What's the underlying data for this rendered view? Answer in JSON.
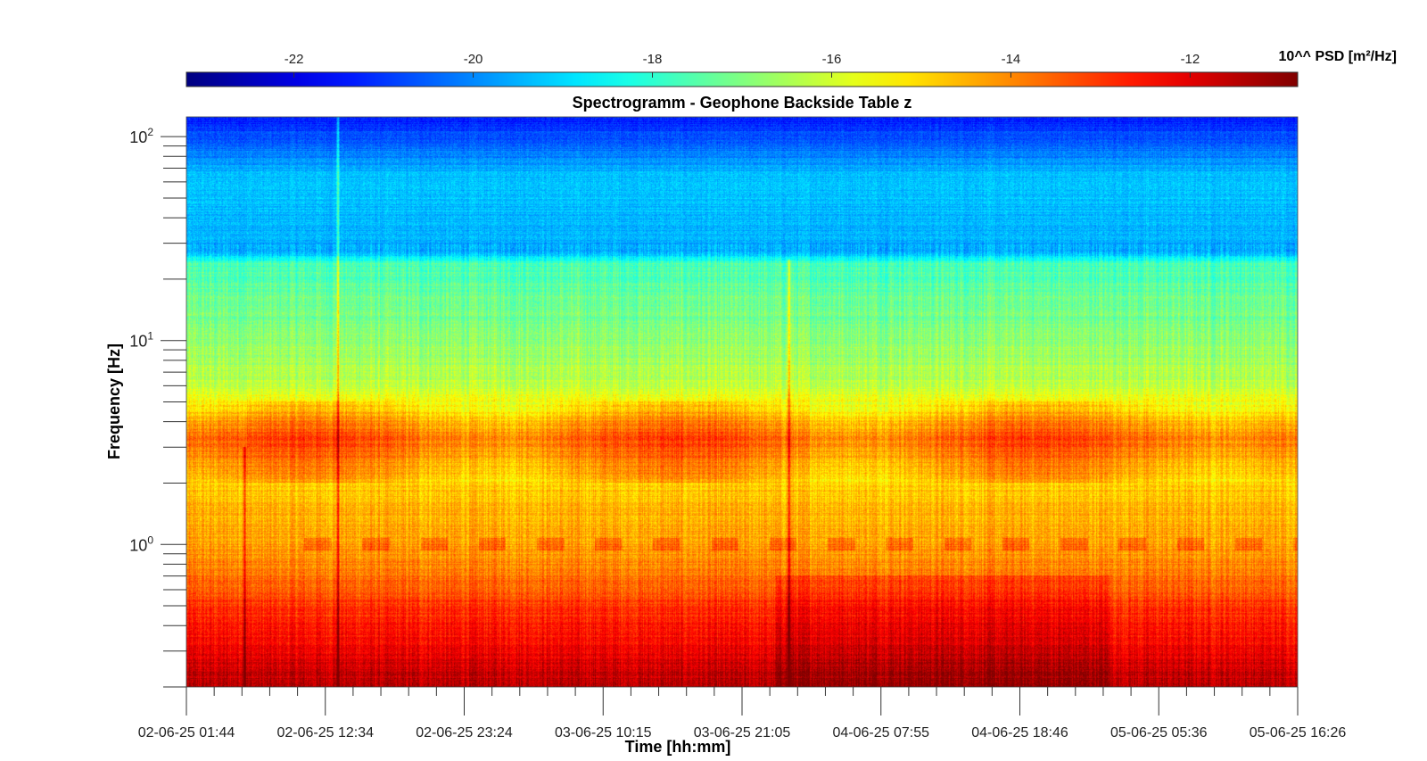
{
  "chart_data": {
    "type": "heatmap",
    "title": "Spectrogramm - Geophone Backside Table z",
    "xlabel": "Time [hh:mm]",
    "ylabel": "Frequency [Hz]",
    "x_ticks": [
      "02-06-25 01:44",
      "02-06-25 12:34",
      "02-06-25 23:24",
      "03-06-25 10:15",
      "03-06-25 21:05",
      "04-06-25 07:55",
      "04-06-25 18:46",
      "05-06-25 05:36",
      "05-06-25 16:26"
    ],
    "y_scale": "log",
    "ylim": [
      0.2,
      125
    ],
    "y_ticks": [
      {
        "value": 1,
        "base": "10",
        "exp": "0"
      },
      {
        "value": 10,
        "base": "10",
        "exp": "1"
      },
      {
        "value": 100,
        "base": "10",
        "exp": "2"
      }
    ],
    "colorbar": {
      "label": "10^^ PSD [m²/Hz]",
      "range": [
        -23.2,
        -10.8
      ],
      "ticks": [
        "-22",
        "-20",
        "-18",
        "-16",
        "-14",
        "-12"
      ],
      "colormap": "jet"
    },
    "psd_profile": [
      {
        "freq_hz": 0.2,
        "log_psd": -11.4
      },
      {
        "freq_hz": 0.3,
        "log_psd": -12.2
      },
      {
        "freq_hz": 0.5,
        "log_psd": -13.0
      },
      {
        "freq_hz": 0.8,
        "log_psd": -14.0
      },
      {
        "freq_hz": 1.0,
        "log_psd": -14.3
      },
      {
        "freq_hz": 2.0,
        "log_psd": -14.8
      },
      {
        "freq_hz": 3.3,
        "log_psd": -13.6
      },
      {
        "freq_hz": 6.0,
        "log_psd": -16.2
      },
      {
        "freq_hz": 12.0,
        "log_psd": -17.0
      },
      {
        "freq_hz": 24.0,
        "log_psd": -17.7
      },
      {
        "freq_hz": 27.0,
        "log_psd": -19.6
      },
      {
        "freq_hz": 60.0,
        "log_psd": -19.2
      },
      {
        "freq_hz": 125.0,
        "log_psd": -21.3
      }
    ],
    "transients": [
      {
        "time_frac": 0.052,
        "top_freq_hz": 3.0
      },
      {
        "time_frac": 0.136,
        "top_freq_hz": 125.0
      },
      {
        "time_frac": 0.542,
        "top_freq_hz": 25.0
      }
    ]
  }
}
